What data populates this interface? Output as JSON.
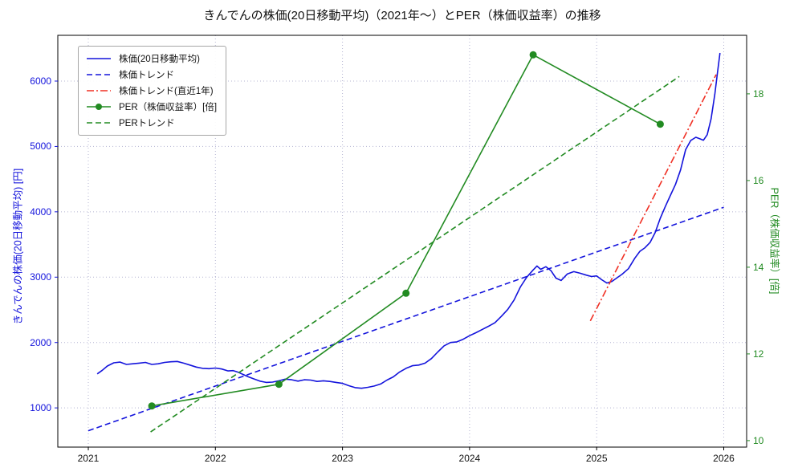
{
  "title": "きんでんの株価(20日移動平均)（2021年〜）とPER（株価収益率）の推移",
  "axes": {
    "left_label": "きんでんの株価(20日移動平均) [円]",
    "right_label": "PER（株価収益率）[倍]"
  },
  "chart_data": {
    "type": "line",
    "title": "きんでんの株価(20日移動平均)（2021年〜）とPER（株価収益率）の推移",
    "xlabel": "",
    "ylabel_left": "きんでんの株価(20日移動平均) [円]",
    "ylabel_right": "PER（株価収益率）[倍]",
    "xlim": [
      2020.76,
      2026.18
    ],
    "price_ylim": [
      400,
      6700
    ],
    "per_ylim": [
      9.85,
      19.35
    ],
    "x_ticks": [
      2021,
      2022,
      2023,
      2024,
      2025,
      2026
    ],
    "price_ticks": [
      1000,
      2000,
      3000,
      4000,
      5000,
      6000
    ],
    "per_ticks": [
      10,
      12,
      14,
      16,
      18
    ],
    "grid": true,
    "legend_position": "upper-left",
    "colors": {
      "blue": "#1414dc",
      "green": "#228b22",
      "red": "#f03024",
      "grid": "#b4b4d2"
    },
    "series": [
      {
        "id": "price-ma",
        "name": "株価(20日移動平均)",
        "axis": "price",
        "color": "blue",
        "style": "solid",
        "marker": false,
        "points": [
          [
            2021.07,
            1520
          ],
          [
            2021.11,
            1575
          ],
          [
            2021.15,
            1640
          ],
          [
            2021.2,
            1690
          ],
          [
            2021.25,
            1700
          ],
          [
            2021.3,
            1665
          ],
          [
            2021.35,
            1675
          ],
          [
            2021.4,
            1685
          ],
          [
            2021.45,
            1695
          ],
          [
            2021.5,
            1665
          ],
          [
            2021.55,
            1675
          ],
          [
            2021.6,
            1695
          ],
          [
            2021.65,
            1705
          ],
          [
            2021.7,
            1710
          ],
          [
            2021.75,
            1685
          ],
          [
            2021.8,
            1655
          ],
          [
            2021.85,
            1625
          ],
          [
            2021.9,
            1605
          ],
          [
            2021.95,
            1600
          ],
          [
            2022.0,
            1610
          ],
          [
            2022.05,
            1595
          ],
          [
            2022.1,
            1565
          ],
          [
            2022.14,
            1570
          ],
          [
            2022.18,
            1545
          ],
          [
            2022.22,
            1510
          ],
          [
            2022.26,
            1475
          ],
          [
            2022.3,
            1445
          ],
          [
            2022.35,
            1410
          ],
          [
            2022.4,
            1390
          ],
          [
            2022.45,
            1395
          ],
          [
            2022.5,
            1415
          ],
          [
            2022.55,
            1440
          ],
          [
            2022.6,
            1430
          ],
          [
            2022.65,
            1410
          ],
          [
            2022.7,
            1430
          ],
          [
            2022.75,
            1425
          ],
          [
            2022.8,
            1405
          ],
          [
            2022.85,
            1415
          ],
          [
            2022.9,
            1405
          ],
          [
            2022.95,
            1390
          ],
          [
            2023.0,
            1375
          ],
          [
            2023.05,
            1340
          ],
          [
            2023.1,
            1310
          ],
          [
            2023.15,
            1300
          ],
          [
            2023.2,
            1315
          ],
          [
            2023.25,
            1335
          ],
          [
            2023.3,
            1365
          ],
          [
            2023.35,
            1425
          ],
          [
            2023.4,
            1475
          ],
          [
            2023.45,
            1550
          ],
          [
            2023.5,
            1605
          ],
          [
            2023.55,
            1645
          ],
          [
            2023.6,
            1655
          ],
          [
            2023.65,
            1685
          ],
          [
            2023.7,
            1755
          ],
          [
            2023.75,
            1855
          ],
          [
            2023.8,
            1950
          ],
          [
            2023.85,
            2000
          ],
          [
            2023.9,
            2010
          ],
          [
            2023.95,
            2050
          ],
          [
            2024.0,
            2105
          ],
          [
            2024.05,
            2150
          ],
          [
            2024.1,
            2200
          ],
          [
            2024.15,
            2250
          ],
          [
            2024.2,
            2305
          ],
          [
            2024.25,
            2400
          ],
          [
            2024.3,
            2505
          ],
          [
            2024.35,
            2650
          ],
          [
            2024.4,
            2850
          ],
          [
            2024.45,
            3000
          ],
          [
            2024.5,
            3110
          ],
          [
            2024.53,
            3170
          ],
          [
            2024.56,
            3120
          ],
          [
            2024.6,
            3160
          ],
          [
            2024.64,
            3100
          ],
          [
            2024.68,
            2985
          ],
          [
            2024.72,
            2950
          ],
          [
            2024.77,
            3050
          ],
          [
            2024.82,
            3085
          ],
          [
            2024.87,
            3060
          ],
          [
            2024.92,
            3030
          ],
          [
            2024.96,
            3010
          ],
          [
            2025.0,
            3020
          ],
          [
            2025.04,
            2960
          ],
          [
            2025.08,
            2910
          ],
          [
            2025.12,
            2935
          ],
          [
            2025.16,
            2990
          ],
          [
            2025.2,
            3045
          ],
          [
            2025.25,
            3130
          ],
          [
            2025.3,
            3290
          ],
          [
            2025.34,
            3395
          ],
          [
            2025.38,
            3450
          ],
          [
            2025.42,
            3530
          ],
          [
            2025.46,
            3680
          ],
          [
            2025.5,
            3900
          ],
          [
            2025.54,
            4080
          ],
          [
            2025.58,
            4250
          ],
          [
            2025.62,
            4420
          ],
          [
            2025.66,
            4640
          ],
          [
            2025.7,
            4950
          ],
          [
            2025.74,
            5090
          ],
          [
            2025.78,
            5140
          ],
          [
            2025.81,
            5120
          ],
          [
            2025.84,
            5095
          ],
          [
            2025.87,
            5180
          ],
          [
            2025.9,
            5420
          ],
          [
            2025.93,
            5800
          ],
          [
            2025.95,
            6120
          ],
          [
            2025.97,
            6430
          ]
        ]
      },
      {
        "id": "price-trend",
        "name": "株価トレンド",
        "axis": "price",
        "color": "blue",
        "style": "dashed",
        "marker": false,
        "points": [
          [
            2021.0,
            650
          ],
          [
            2026.0,
            4070
          ]
        ]
      },
      {
        "id": "price-trend-recent",
        "name": "株価トレンド(直近1年)",
        "axis": "price",
        "color": "red",
        "style": "dashdot",
        "marker": false,
        "points": [
          [
            2024.95,
            2330
          ],
          [
            2025.94,
            6100
          ]
        ]
      },
      {
        "id": "per",
        "name": "PER（株価収益率）[倍]",
        "axis": "per",
        "color": "green",
        "style": "solid",
        "marker": true,
        "points": [
          [
            2021.5,
            10.8
          ],
          [
            2022.5,
            11.3
          ],
          [
            2023.5,
            13.4
          ],
          [
            2024.5,
            18.9
          ],
          [
            2025.5,
            17.3
          ]
        ]
      },
      {
        "id": "per-trend",
        "name": "PERトレンド",
        "axis": "per",
        "color": "green",
        "style": "dashed",
        "marker": false,
        "points": [
          [
            2021.49,
            10.2
          ],
          [
            2025.65,
            18.4
          ]
        ]
      }
    ]
  }
}
